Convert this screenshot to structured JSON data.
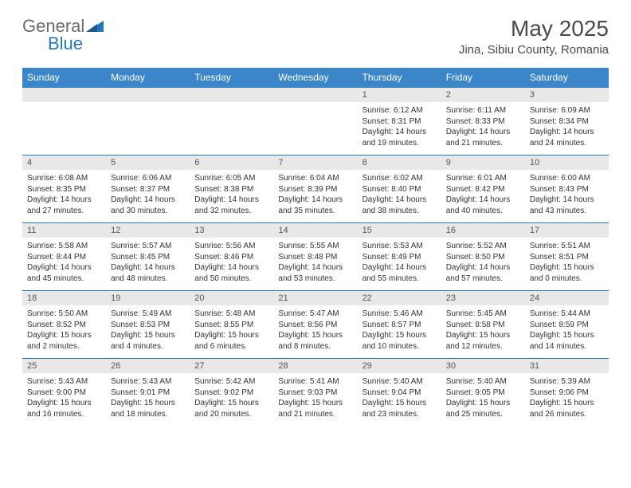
{
  "brand": {
    "general": "General",
    "blue": "Blue"
  },
  "title": "May 2025",
  "location": "Jina, Sibiu County, Romania",
  "colors": {
    "header_bg": "#3a86c8",
    "header_text": "#ffffff",
    "daynum_bg": "#e8e8e8",
    "daynum_text": "#555555",
    "detail_text": "#333333",
    "border": "#2976b7",
    "logo_gray": "#6b6b6b",
    "logo_blue": "#2976b7"
  },
  "day_headers": [
    "Sunday",
    "Monday",
    "Tuesday",
    "Wednesday",
    "Thursday",
    "Friday",
    "Saturday"
  ],
  "weeks": [
    [
      null,
      null,
      null,
      null,
      {
        "n": "1",
        "sunrise": "6:12 AM",
        "sunset": "8:31 PM",
        "daylight_h": "14",
        "daylight_m": "19"
      },
      {
        "n": "2",
        "sunrise": "6:11 AM",
        "sunset": "8:33 PM",
        "daylight_h": "14",
        "daylight_m": "21"
      },
      {
        "n": "3",
        "sunrise": "6:09 AM",
        "sunset": "8:34 PM",
        "daylight_h": "14",
        "daylight_m": "24"
      }
    ],
    [
      {
        "n": "4",
        "sunrise": "6:08 AM",
        "sunset": "8:35 PM",
        "daylight_h": "14",
        "daylight_m": "27"
      },
      {
        "n": "5",
        "sunrise": "6:06 AM",
        "sunset": "8:37 PM",
        "daylight_h": "14",
        "daylight_m": "30"
      },
      {
        "n": "6",
        "sunrise": "6:05 AM",
        "sunset": "8:38 PM",
        "daylight_h": "14",
        "daylight_m": "32"
      },
      {
        "n": "7",
        "sunrise": "6:04 AM",
        "sunset": "8:39 PM",
        "daylight_h": "14",
        "daylight_m": "35"
      },
      {
        "n": "8",
        "sunrise": "6:02 AM",
        "sunset": "8:40 PM",
        "daylight_h": "14",
        "daylight_m": "38"
      },
      {
        "n": "9",
        "sunrise": "6:01 AM",
        "sunset": "8:42 PM",
        "daylight_h": "14",
        "daylight_m": "40"
      },
      {
        "n": "10",
        "sunrise": "6:00 AM",
        "sunset": "8:43 PM",
        "daylight_h": "14",
        "daylight_m": "43"
      }
    ],
    [
      {
        "n": "11",
        "sunrise": "5:58 AM",
        "sunset": "8:44 PM",
        "daylight_h": "14",
        "daylight_m": "45"
      },
      {
        "n": "12",
        "sunrise": "5:57 AM",
        "sunset": "8:45 PM",
        "daylight_h": "14",
        "daylight_m": "48"
      },
      {
        "n": "13",
        "sunrise": "5:56 AM",
        "sunset": "8:46 PM",
        "daylight_h": "14",
        "daylight_m": "50"
      },
      {
        "n": "14",
        "sunrise": "5:55 AM",
        "sunset": "8:48 PM",
        "daylight_h": "14",
        "daylight_m": "53"
      },
      {
        "n": "15",
        "sunrise": "5:53 AM",
        "sunset": "8:49 PM",
        "daylight_h": "14",
        "daylight_m": "55"
      },
      {
        "n": "16",
        "sunrise": "5:52 AM",
        "sunset": "8:50 PM",
        "daylight_h": "14",
        "daylight_m": "57"
      },
      {
        "n": "17",
        "sunrise": "5:51 AM",
        "sunset": "8:51 PM",
        "daylight_h": "15",
        "daylight_m": "0"
      }
    ],
    [
      {
        "n": "18",
        "sunrise": "5:50 AM",
        "sunset": "8:52 PM",
        "daylight_h": "15",
        "daylight_m": "2"
      },
      {
        "n": "19",
        "sunrise": "5:49 AM",
        "sunset": "8:53 PM",
        "daylight_h": "15",
        "daylight_m": "4"
      },
      {
        "n": "20",
        "sunrise": "5:48 AM",
        "sunset": "8:55 PM",
        "daylight_h": "15",
        "daylight_m": "6"
      },
      {
        "n": "21",
        "sunrise": "5:47 AM",
        "sunset": "8:56 PM",
        "daylight_h": "15",
        "daylight_m": "8"
      },
      {
        "n": "22",
        "sunrise": "5:46 AM",
        "sunset": "8:57 PM",
        "daylight_h": "15",
        "daylight_m": "10"
      },
      {
        "n": "23",
        "sunrise": "5:45 AM",
        "sunset": "8:58 PM",
        "daylight_h": "15",
        "daylight_m": "12"
      },
      {
        "n": "24",
        "sunrise": "5:44 AM",
        "sunset": "8:59 PM",
        "daylight_h": "15",
        "daylight_m": "14"
      }
    ],
    [
      {
        "n": "25",
        "sunrise": "5:43 AM",
        "sunset": "9:00 PM",
        "daylight_h": "15",
        "daylight_m": "16"
      },
      {
        "n": "26",
        "sunrise": "5:43 AM",
        "sunset": "9:01 PM",
        "daylight_h": "15",
        "daylight_m": "18"
      },
      {
        "n": "27",
        "sunrise": "5:42 AM",
        "sunset": "9:02 PM",
        "daylight_h": "15",
        "daylight_m": "20"
      },
      {
        "n": "28",
        "sunrise": "5:41 AM",
        "sunset": "9:03 PM",
        "daylight_h": "15",
        "daylight_m": "21"
      },
      {
        "n": "29",
        "sunrise": "5:40 AM",
        "sunset": "9:04 PM",
        "daylight_h": "15",
        "daylight_m": "23"
      },
      {
        "n": "30",
        "sunrise": "5:40 AM",
        "sunset": "9:05 PM",
        "daylight_h": "15",
        "daylight_m": "25"
      },
      {
        "n": "31",
        "sunrise": "5:39 AM",
        "sunset": "9:06 PM",
        "daylight_h": "15",
        "daylight_m": "26"
      }
    ]
  ],
  "labels": {
    "sunrise": "Sunrise:",
    "sunset": "Sunset:",
    "daylight": "Daylight:",
    "hours": "hours",
    "and": "and",
    "minutes": "minutes."
  }
}
